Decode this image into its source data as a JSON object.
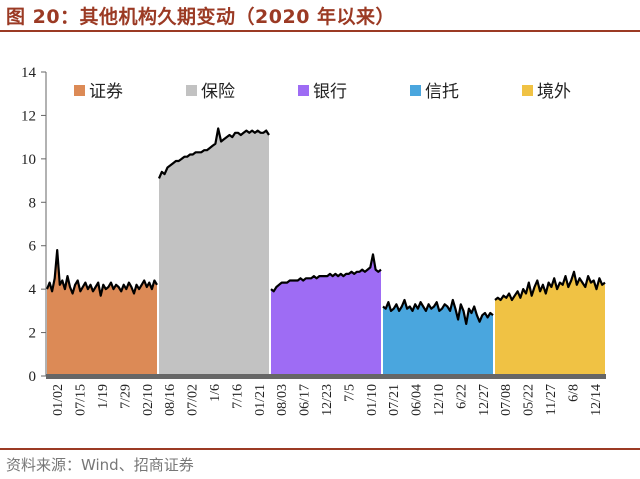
{
  "title": "图 20：其他机构久期变动（2020 年以来）",
  "source": "资料来源：Wind、招商证券",
  "colors": {
    "accent": "#9b3a24",
    "axis": "#666666",
    "line": "#000000"
  },
  "chart_data": {
    "type": "area",
    "ylim": [
      0,
      14
    ],
    "yticks": [
      0,
      2,
      4,
      6,
      8,
      10,
      12,
      14
    ],
    "legend_position": "top",
    "x_tick_labels": [
      "01/02",
      "07/15",
      "1/19",
      "7/29",
      "02/10",
      "08/16",
      "07/02",
      "1/6",
      "7/16",
      "01/21",
      "08/03",
      "06/17",
      "12/23",
      "7/5",
      "01/10",
      "07/21",
      "06/04",
      "12/10",
      "6/22",
      "12/27",
      "07/08",
      "05/22",
      "11/27",
      "6/8",
      "12/14"
    ],
    "series": [
      {
        "name": "证券",
        "color": "#dc8a56",
        "values": [
          4.0,
          4.3,
          3.9,
          4.5,
          5.8,
          4.2,
          4.4,
          4.0,
          4.6,
          4.1,
          3.8,
          4.2,
          4.4,
          3.9,
          4.1,
          4.3,
          4.0,
          4.2,
          3.9,
          4.1,
          4.3,
          3.7,
          4.2,
          4.0,
          4.1,
          4.3,
          4.0,
          4.2,
          4.1,
          3.9,
          4.2,
          4.0,
          4.3,
          4.1,
          3.8,
          4.2,
          4.0,
          4.2,
          4.4,
          4.1,
          4.3,
          4.0,
          4.4,
          4.2
        ]
      },
      {
        "name": "保险",
        "color": "#c2c2c2",
        "values": [
          9.1,
          9.4,
          9.3,
          9.6,
          9.7,
          9.8,
          9.9,
          9.9,
          10.0,
          10.1,
          10.1,
          10.2,
          10.2,
          10.3,
          10.3,
          10.3,
          10.4,
          10.4,
          10.5,
          10.6,
          10.7,
          11.4,
          10.8,
          10.9,
          11.0,
          11.1,
          11.0,
          11.2,
          11.2,
          11.1,
          11.2,
          11.3,
          11.2,
          11.3,
          11.2,
          11.3,
          11.2,
          11.2,
          11.3,
          11.1
        ]
      },
      {
        "name": "银行",
        "color": "#9e6cf4",
        "values": [
          4.0,
          3.9,
          4.1,
          4.2,
          4.3,
          4.3,
          4.3,
          4.4,
          4.4,
          4.4,
          4.4,
          4.5,
          4.4,
          4.5,
          4.5,
          4.5,
          4.6,
          4.5,
          4.6,
          4.6,
          4.6,
          4.6,
          4.7,
          4.6,
          4.7,
          4.6,
          4.7,
          4.6,
          4.7,
          4.7,
          4.8,
          4.7,
          4.8,
          4.8,
          4.9,
          4.8,
          4.9,
          5.0,
          5.6,
          4.9,
          4.8,
          4.9
        ]
      },
      {
        "name": "信托",
        "color": "#4aa6de",
        "values": [
          3.2,
          3.1,
          3.4,
          3.0,
          3.1,
          3.3,
          3.0,
          3.2,
          3.5,
          3.1,
          3.2,
          3.0,
          3.3,
          3.1,
          3.4,
          3.2,
          3.0,
          3.3,
          3.1,
          3.2,
          3.4,
          3.0,
          3.1,
          3.3,
          3.2,
          3.0,
          3.5,
          3.1,
          2.6,
          3.3,
          3.0,
          2.4,
          3.1,
          2.9,
          3.2,
          2.8,
          2.5,
          2.8,
          2.9,
          2.7,
          2.9,
          2.8
        ]
      },
      {
        "name": "境外",
        "color": "#f0c244",
        "values": [
          3.5,
          3.6,
          3.5,
          3.7,
          3.6,
          3.8,
          3.5,
          3.7,
          3.9,
          3.6,
          4.0,
          3.8,
          4.3,
          3.7,
          4.1,
          4.4,
          3.9,
          4.2,
          3.8,
          4.3,
          4.1,
          4.5,
          4.0,
          4.3,
          4.2,
          4.6,
          4.1,
          4.4,
          4.8,
          4.2,
          4.5,
          4.3,
          4.1,
          4.6,
          4.3,
          4.4,
          4.0,
          4.5,
          4.2,
          4.3
        ]
      }
    ]
  }
}
